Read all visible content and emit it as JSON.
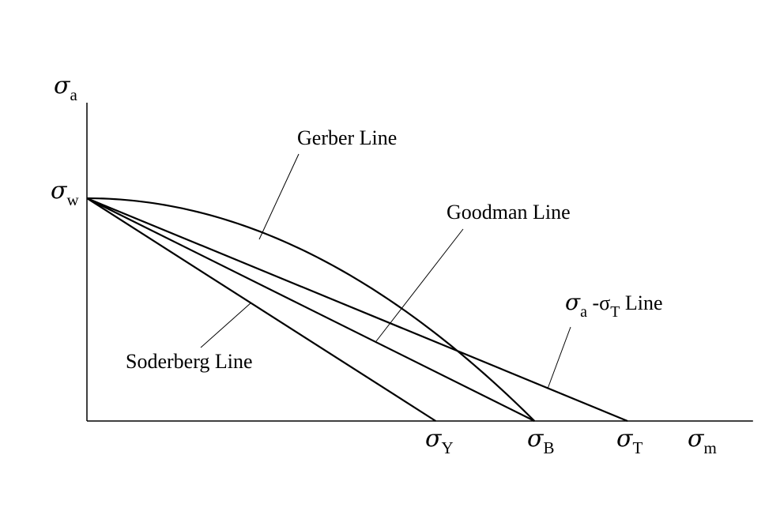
{
  "chart_data": {
    "type": "line",
    "title": "",
    "xlabel": {
      "symbol": "σ",
      "sub": "m"
    },
    "ylabel": {
      "symbol": "σ",
      "sub": "a"
    },
    "grid": false,
    "legend": "none",
    "y_intercept": {
      "symbol": "σ",
      "sub": "w",
      "value": 1.0
    },
    "x_ticks": [
      {
        "symbol": "σ",
        "sub": "Y",
        "value": 0.6
      },
      {
        "symbol": "σ",
        "sub": "B",
        "value": 0.77
      },
      {
        "symbol": "σ",
        "sub": "T",
        "value": 0.93
      }
    ],
    "xlim": [
      0,
      1.15
    ],
    "ylim": [
      0,
      1.5
    ],
    "series": [
      {
        "name": "Soderberg Line",
        "kind": "linear",
        "x": [
          0,
          0.6
        ],
        "y": [
          1,
          0
        ]
      },
      {
        "name": "Goodman Line",
        "kind": "linear",
        "x": [
          0,
          0.77
        ],
        "y": [
          1,
          0
        ]
      },
      {
        "name": "σa -σT Line",
        "kind": "linear",
        "x": [
          0,
          0.93
        ],
        "y": [
          1,
          0
        ]
      },
      {
        "name": "Gerber Line",
        "kind": "parabolic",
        "x": [
          0,
          0.77
        ],
        "y": [
          1,
          0
        ]
      }
    ],
    "annotations": {
      "gerber": "Gerber Line",
      "goodman": "Goodman Line",
      "soderberg": "Soderberg Line",
      "sigma_t": {
        "pre": "σ",
        "sub1": "a",
        "mid": " -σ",
        "sub2": "T",
        "post": " Line"
      }
    }
  }
}
